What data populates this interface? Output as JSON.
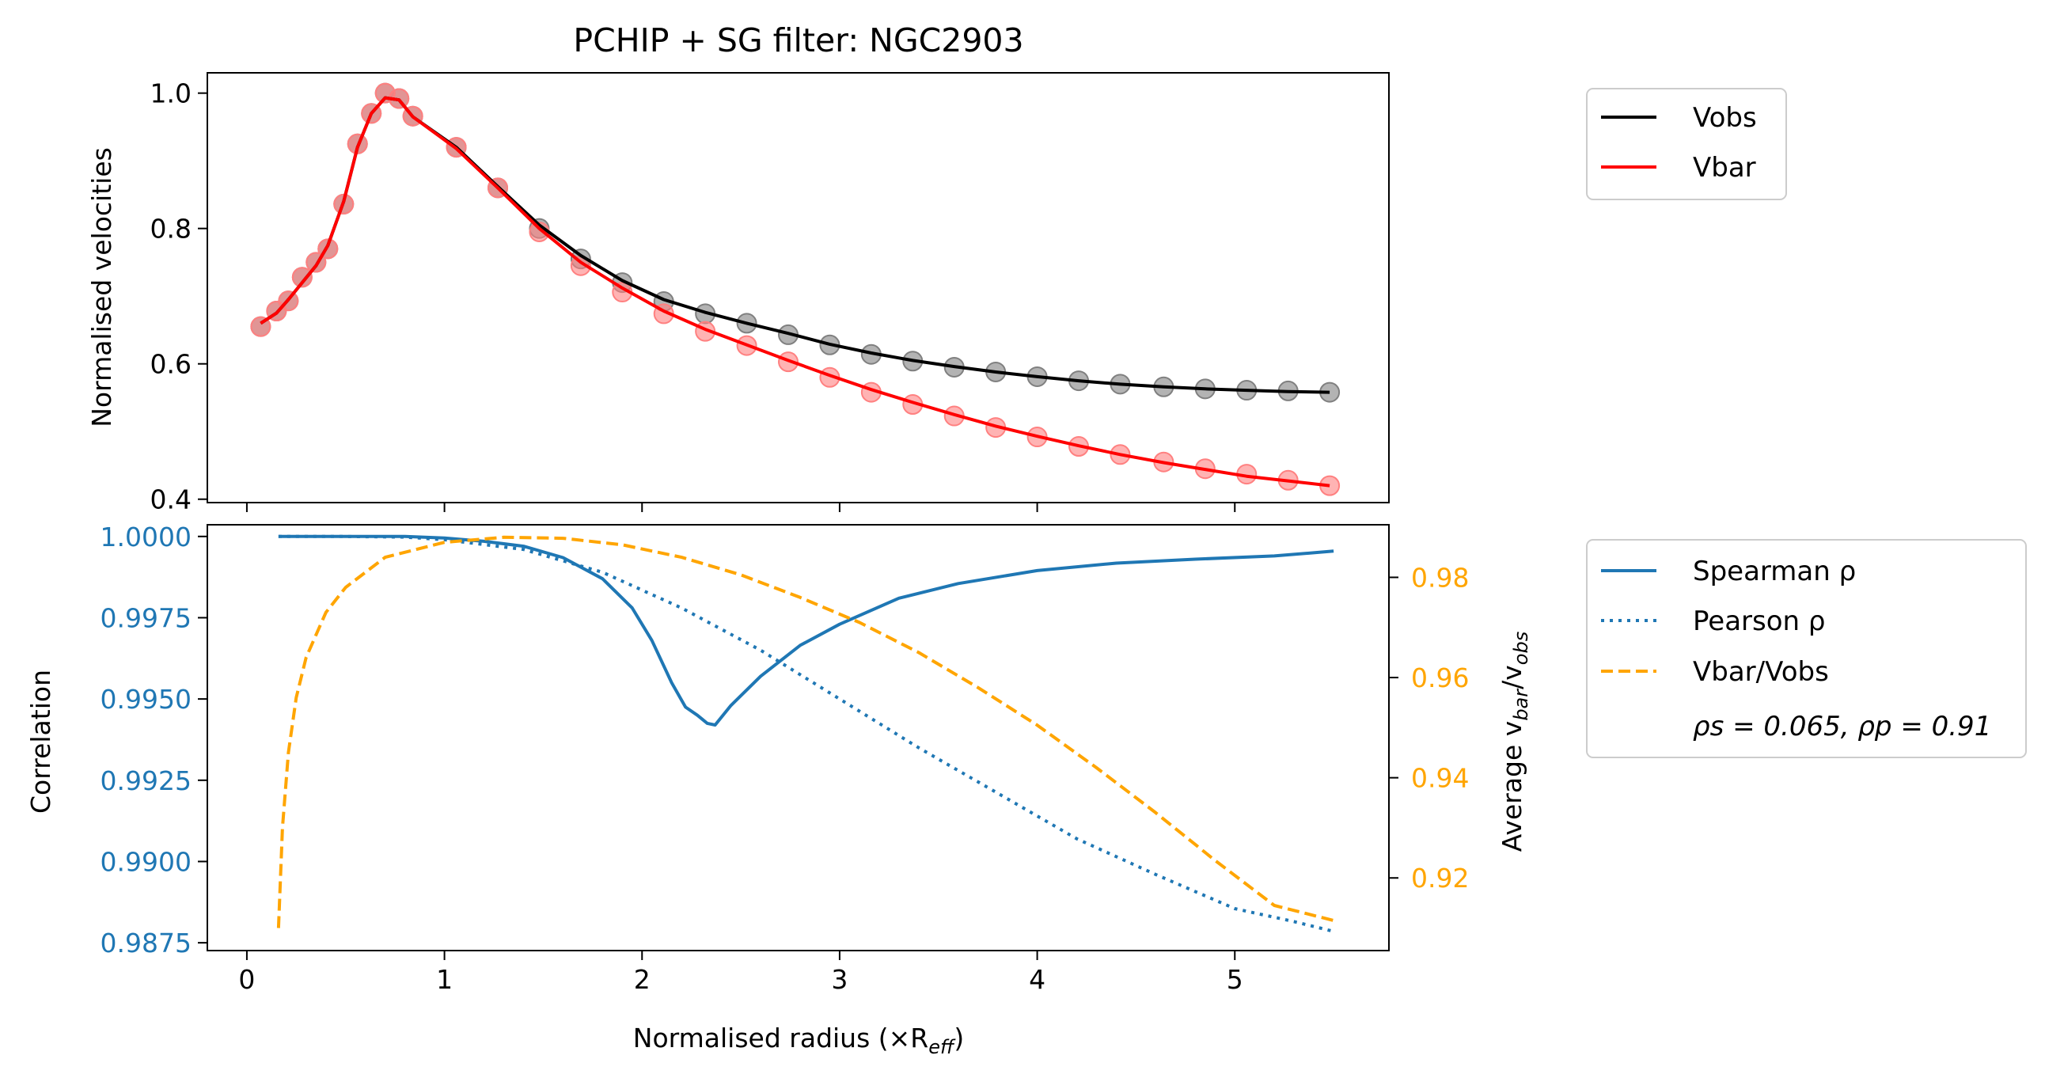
{
  "chart_data": [
    {
      "type": "line",
      "title": "PCHIP + SG filter: NGC2903",
      "xlabel": "",
      "ylabel": "Normalised velocities",
      "xlim": [
        -0.2,
        5.78
      ],
      "ylim": [
        0.395,
        1.03
      ],
      "yticks": [
        "0.4",
        "0.6",
        "0.8",
        "1.0"
      ],
      "grid": false,
      "legend_position": "outside-right-top",
      "series": [
        {
          "name": "Vobs",
          "color": "#000000",
          "style": "solid",
          "marker_color": "#808080",
          "points_x": [
            0.07,
            0.15,
            0.21,
            0.28,
            0.35,
            0.41,
            0.49,
            0.56,
            0.63,
            0.7,
            0.77,
            0.84,
            1.06,
            1.27,
            1.48,
            1.69,
            1.9,
            2.11,
            2.32,
            2.53,
            2.74,
            2.95,
            3.16,
            3.37,
            3.58,
            3.79,
            4.0,
            4.21,
            4.42,
            4.64,
            4.85,
            5.06,
            5.27,
            5.48
          ],
          "points_y": [
            0.655,
            0.678,
            0.693,
            0.728,
            0.75,
            0.77,
            0.836,
            0.925,
            0.97,
            1.0,
            0.992,
            0.966,
            0.92,
            0.86,
            0.8,
            0.755,
            0.72,
            0.692,
            0.674,
            0.66,
            0.643,
            0.628,
            0.614,
            0.604,
            0.595,
            0.588,
            0.581,
            0.575,
            0.57,
            0.566,
            0.563,
            0.561,
            0.56,
            0.558
          ],
          "curve_x": [
            0.07,
            0.15,
            0.21,
            0.28,
            0.35,
            0.41,
            0.49,
            0.56,
            0.63,
            0.7,
            0.77,
            0.84,
            1.06,
            1.27,
            1.48,
            1.69,
            1.9,
            2.11,
            2.32,
            2.53,
            2.74,
            2.95,
            3.16,
            3.37,
            3.58,
            3.79,
            4.0,
            4.21,
            4.42,
            4.64,
            4.85,
            5.06,
            5.27,
            5.48
          ],
          "curve_y": [
            0.66,
            0.675,
            0.695,
            0.72,
            0.745,
            0.775,
            0.84,
            0.92,
            0.97,
            0.993,
            0.99,
            0.965,
            0.92,
            0.862,
            0.805,
            0.76,
            0.723,
            0.695,
            0.676,
            0.66,
            0.645,
            0.629,
            0.616,
            0.605,
            0.596,
            0.588,
            0.581,
            0.575,
            0.57,
            0.566,
            0.563,
            0.561,
            0.559,
            0.558
          ]
        },
        {
          "name": "Vbar",
          "color": "#ff0000",
          "style": "solid",
          "marker_color": "#ff8080",
          "points_x": [
            0.07,
            0.15,
            0.21,
            0.28,
            0.35,
            0.41,
            0.49,
            0.56,
            0.63,
            0.7,
            0.77,
            0.84,
            1.06,
            1.27,
            1.48,
            1.69,
            1.9,
            2.11,
            2.32,
            2.53,
            2.74,
            2.95,
            3.16,
            3.37,
            3.58,
            3.79,
            4.0,
            4.21,
            4.42,
            4.64,
            4.85,
            5.06,
            5.27,
            5.48
          ],
          "points_y": [
            0.655,
            0.678,
            0.693,
            0.728,
            0.75,
            0.77,
            0.836,
            0.925,
            0.97,
            1.0,
            0.992,
            0.966,
            0.92,
            0.86,
            0.795,
            0.745,
            0.706,
            0.674,
            0.648,
            0.627,
            0.603,
            0.58,
            0.558,
            0.54,
            0.523,
            0.506,
            0.492,
            0.478,
            0.466,
            0.455,
            0.445,
            0.437,
            0.428,
            0.42
          ],
          "curve_x": [
            0.07,
            0.15,
            0.21,
            0.28,
            0.35,
            0.41,
            0.49,
            0.56,
            0.63,
            0.7,
            0.77,
            0.84,
            1.06,
            1.27,
            1.48,
            1.69,
            1.9,
            2.11,
            2.32,
            2.53,
            2.74,
            2.95,
            3.16,
            3.37,
            3.58,
            3.79,
            4.0,
            4.21,
            4.42,
            4.64,
            4.85,
            5.06,
            5.27,
            5.48
          ],
          "curve_y": [
            0.66,
            0.675,
            0.695,
            0.72,
            0.745,
            0.775,
            0.84,
            0.92,
            0.97,
            0.993,
            0.99,
            0.965,
            0.918,
            0.86,
            0.8,
            0.75,
            0.712,
            0.678,
            0.651,
            0.628,
            0.605,
            0.583,
            0.562,
            0.543,
            0.525,
            0.508,
            0.493,
            0.479,
            0.466,
            0.454,
            0.444,
            0.434,
            0.427,
            0.42
          ]
        }
      ]
    },
    {
      "type": "line",
      "xlabel": "Normalised radius (×R",
      "xlabel_sub": "eff",
      "xlabel_end": ")",
      "ylabel": "Correlation",
      "ylabel_right": "Average v",
      "ylabel_right_sub1": "bar",
      "ylabel_right_mid": "/v",
      "ylabel_right_sub2": "obs",
      "xlim": [
        -0.2,
        5.78
      ],
      "ylim_left": [
        0.98726,
        1.00036
      ],
      "ylim_right": [
        0.9055,
        0.9905
      ],
      "xticks": [
        "0",
        "1",
        "2",
        "3",
        "4",
        "5"
      ],
      "xtick_values": [
        0,
        1,
        2,
        3,
        4,
        5
      ],
      "yticks_left": [
        "0.9875",
        "0.9900",
        "0.9925",
        "0.9950",
        "0.9975",
        "1.0000"
      ],
      "yticks_right": [
        "0.92",
        "0.94",
        "0.96",
        "0.98"
      ],
      "left_tick_color": "#1f77b4",
      "right_tick_color": "#ffa500",
      "grid": false,
      "legend_position": "outside-right-top",
      "annotation": "ρs = 0.065, ρp = 0.91",
      "series": [
        {
          "name": "Spearman ρ",
          "color": "#1f77b4",
          "style": "solid",
          "axis": "left",
          "x": [
            0.16,
            0.5,
            0.8,
            1.0,
            1.2,
            1.4,
            1.6,
            1.8,
            1.95,
            2.05,
            2.15,
            2.22,
            2.28,
            2.33,
            2.37,
            2.45,
            2.6,
            2.8,
            3.0,
            3.3,
            3.6,
            4.0,
            4.4,
            4.8,
            5.2,
            5.5
          ],
          "y": [
            1.0,
            1.0,
            1.0,
            0.99995,
            0.99985,
            0.9997,
            0.99935,
            0.9987,
            0.9978,
            0.9968,
            0.9955,
            0.99475,
            0.9945,
            0.99425,
            0.9942,
            0.9948,
            0.9957,
            0.99665,
            0.9973,
            0.9981,
            0.99855,
            0.99895,
            0.99918,
            0.9993,
            0.9994,
            0.99955
          ]
        },
        {
          "name": "Pearson ρ",
          "color": "#1f77b4",
          "style": "dotted",
          "axis": "left",
          "x": [
            0.16,
            0.5,
            0.8,
            1.0,
            1.4,
            1.8,
            2.2,
            2.6,
            3.0,
            3.4,
            3.8,
            4.2,
            4.6,
            5.0,
            5.3,
            5.5
          ],
          "y": [
            1.0,
            1.0,
            0.99998,
            0.9999,
            0.9996,
            0.9989,
            0.9978,
            0.9965,
            0.995,
            0.9935,
            0.9921,
            0.9907,
            0.9896,
            0.98855,
            0.98815,
            0.98785
          ]
        },
        {
          "name": "Vbar/Vobs",
          "color": "#ffa500",
          "style": "dashed",
          "axis": "right",
          "x": [
            0.16,
            0.18,
            0.21,
            0.25,
            0.3,
            0.4,
            0.5,
            0.7,
            1.0,
            1.3,
            1.6,
            1.9,
            2.2,
            2.5,
            2.8,
            3.1,
            3.4,
            3.7,
            4.0,
            4.3,
            4.6,
            4.9,
            5.2,
            5.5
          ],
          "y": [
            0.91,
            0.93,
            0.945,
            0.956,
            0.964,
            0.973,
            0.978,
            0.984,
            0.987,
            0.988,
            0.9878,
            0.9865,
            0.984,
            0.9805,
            0.976,
            0.971,
            0.965,
            0.958,
            0.9505,
            0.942,
            0.933,
            0.9235,
            0.9145,
            0.9115
          ]
        }
      ]
    }
  ]
}
